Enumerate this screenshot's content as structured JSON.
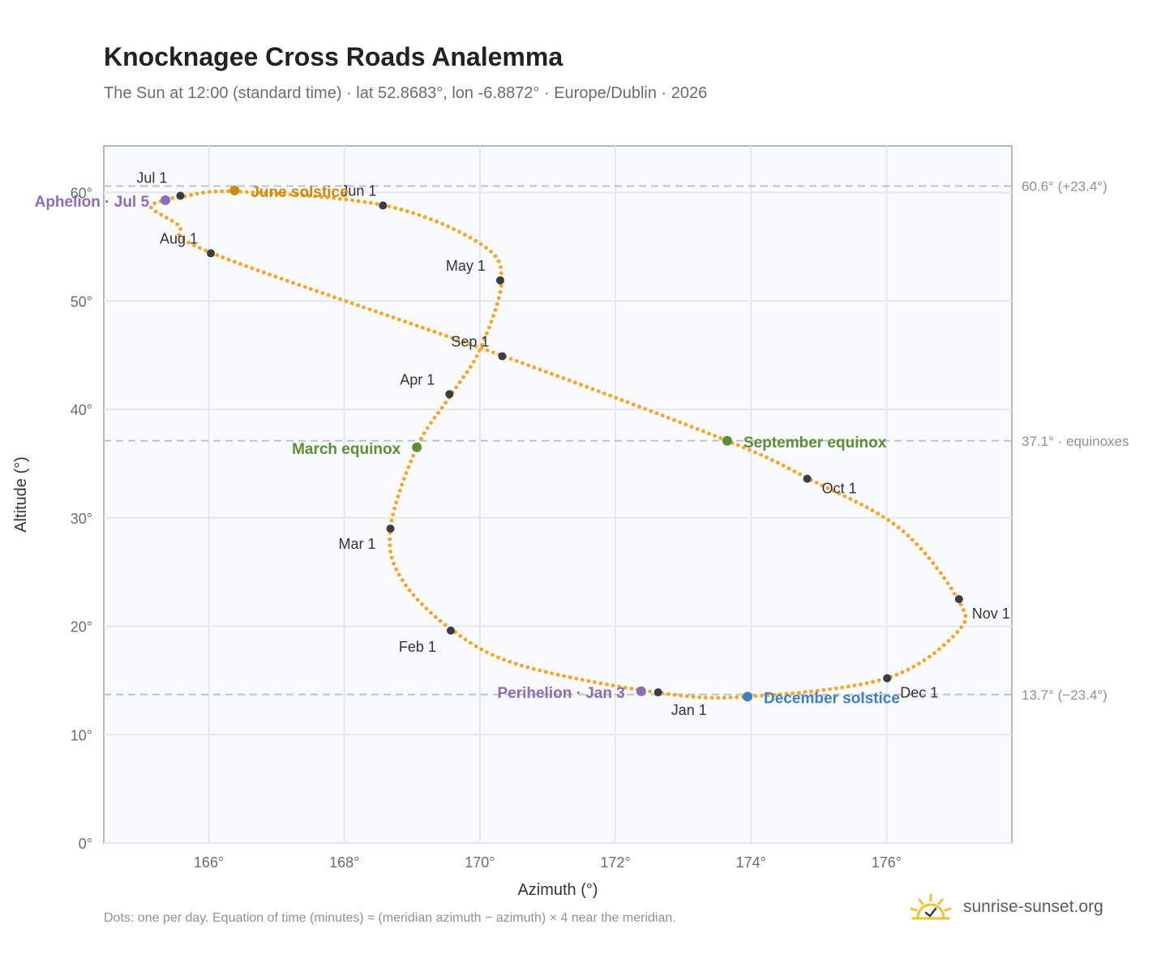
{
  "title": "Knocknagee Cross Roads Analemma",
  "subtitle": "The Sun at 12:00 (standard time) · lat 52.8683°, lon -6.8872° · Europe/Dublin · 2026",
  "footnote": "Dots: one per day. Equation of time (minutes) ≈ (meridian azimuth − azimuth) × 4 near the meridian.",
  "brand": {
    "name": "sunrise-sunset.org",
    "icon": "sun-logo-icon"
  },
  "colors": {
    "curve": "#f5a623",
    "month_marker": "#3a3d45",
    "solstice_june": "#c98b0c",
    "solstice_december": "#3d7fc1",
    "equinox": "#5a8f33",
    "apsis": "#8e6cb8",
    "reference_line": "#b9c4cf",
    "grid": "#e3e8ee",
    "plot_bg": "#f8fafc"
  },
  "chart_data": {
    "type": "scatter",
    "xlabel": "Azimuth (°)",
    "ylabel": "Altitude (°)",
    "xlim": [
      164.45,
      177.85
    ],
    "ylim": [
      0,
      64.3
    ],
    "x_ticks": [
      166,
      168,
      170,
      172,
      174,
      176
    ],
    "x_tick_labels": [
      "166°",
      "168°",
      "170°",
      "172°",
      "174°",
      "176°"
    ],
    "y_ticks": [
      0,
      10,
      20,
      30,
      40,
      50,
      60
    ],
    "y_tick_labels": [
      "0°",
      "10°",
      "20°",
      "30°",
      "40°",
      "50°",
      "60°"
    ],
    "grid": true,
    "reference_lines": [
      {
        "y": 60.6,
        "label": "60.6° (+23.4°)"
      },
      {
        "y": 37.1,
        "label": "37.1° · equinoxes"
      },
      {
        "y": 13.7,
        "label": "13.7° (−23.4°)"
      }
    ],
    "curve_path": [
      {
        "az": 172.6,
        "alt": 13.9
      },
      {
        "az": 170.6,
        "alt": 16.4
      },
      {
        "az": 169.6,
        "alt": 19.6
      },
      {
        "az": 168.85,
        "alt": 24.3
      },
      {
        "az": 168.68,
        "alt": 29.0
      },
      {
        "az": 169.07,
        "alt": 36.5
      },
      {
        "az": 169.57,
        "alt": 41.3
      },
      {
        "az": 170.0,
        "alt": 45.5
      },
      {
        "az": 170.32,
        "alt": 51.9
      },
      {
        "az": 170.0,
        "alt": 55.3
      },
      {
        "az": 168.6,
        "alt": 58.8
      },
      {
        "az": 166.4,
        "alt": 60.1
      },
      {
        "az": 165.6,
        "alt": 59.6
      },
      {
        "az": 165.35,
        "alt": 59.3
      },
      {
        "az": 165.15,
        "alt": 58.6
      },
      {
        "az": 165.55,
        "alt": 57.0
      },
      {
        "az": 166.05,
        "alt": 54.4
      },
      {
        "az": 170.35,
        "alt": 44.9
      },
      {
        "az": 173.65,
        "alt": 37.1
      },
      {
        "az": 174.85,
        "alt": 33.6
      },
      {
        "az": 176.2,
        "alt": 29.0
      },
      {
        "az": 177.05,
        "alt": 22.5
      },
      {
        "az": 177.05,
        "alt": 19.5
      },
      {
        "az": 176.0,
        "alt": 15.2
      },
      {
        "az": 173.95,
        "alt": 13.5
      },
      {
        "az": 172.6,
        "alt": 13.9
      }
    ],
    "month_markers": [
      {
        "label": "Jan 1",
        "az": 172.63,
        "alt": 13.9
      },
      {
        "label": "Feb 1",
        "az": 169.57,
        "alt": 19.6
      },
      {
        "label": "Mar 1",
        "az": 168.68,
        "alt": 29.0
      },
      {
        "label": "Apr 1",
        "az": 169.55,
        "alt": 41.4
      },
      {
        "label": "May 1",
        "az": 170.3,
        "alt": 51.9
      },
      {
        "label": "Jun 1",
        "az": 168.57,
        "alt": 58.8
      },
      {
        "label": "Jul 1",
        "az": 165.58,
        "alt": 59.7
      },
      {
        "label": "Aug 1",
        "az": 166.03,
        "alt": 54.4
      },
      {
        "label": "Sep 1",
        "az": 170.33,
        "alt": 44.9
      },
      {
        "label": "Oct 1",
        "az": 174.83,
        "alt": 33.6
      },
      {
        "label": "Nov 1",
        "az": 177.07,
        "alt": 22.5
      },
      {
        "label": "Dec 1",
        "az": 176.01,
        "alt": 15.2
      }
    ],
    "events": [
      {
        "label": "June solstice",
        "az": 166.38,
        "alt": 60.2,
        "color": "#c98b0c"
      },
      {
        "label": "December solstice",
        "az": 173.95,
        "alt": 13.5,
        "color": "#3d7fc1"
      },
      {
        "label": "March equinox",
        "az": 169.07,
        "alt": 36.5,
        "color": "#5a8f33"
      },
      {
        "label": "September equinox",
        "az": 173.65,
        "alt": 37.1,
        "color": "#5a8f33"
      },
      {
        "label": "Aphelion · Jul 5",
        "az": 165.36,
        "alt": 59.3,
        "color": "#8e6cb8"
      },
      {
        "label": "Perihelion · Jan 3",
        "az": 172.38,
        "alt": 14.0,
        "color": "#8e6cb8"
      }
    ]
  }
}
